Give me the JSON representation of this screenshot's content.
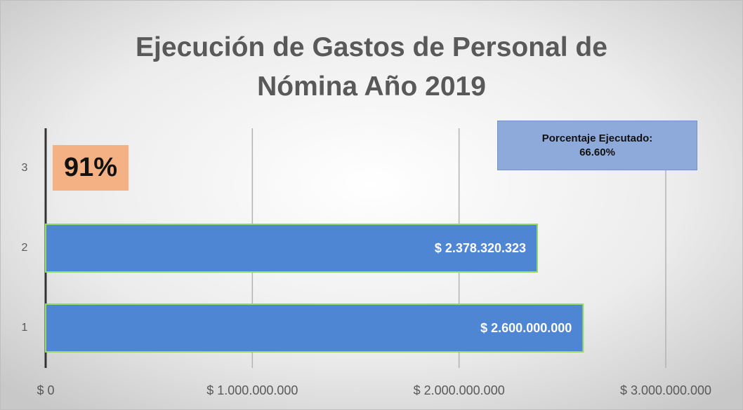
{
  "chart_data": {
    "type": "bar",
    "orientation": "horizontal",
    "title": "Ejecución de Gastos de Personal de Nómina Año 2019",
    "categories": [
      "1",
      "2",
      "3"
    ],
    "values": [
      2600000000,
      2378320323,
      null
    ],
    "value_labels": [
      "$ 2.600.000.000",
      "$ 2.378.320.323",
      null
    ],
    "color": "#4f86d4",
    "xlim": [
      0,
      3000000000
    ],
    "xticks": [
      {
        "value": 0,
        "label": "$ 0"
      },
      {
        "value": 1000000000,
        "label": "$ 1.000.000.000"
      },
      {
        "value": 2000000000,
        "label": "$ 2.000.000.000"
      },
      {
        "value": 3000000000,
        "label": "$ 3.000.000.000"
      }
    ],
    "grid": true,
    "annotations": [
      {
        "text": "91%"
      },
      {
        "text": "Porcentaje Ejecutado: 66.60%"
      }
    ]
  }
}
